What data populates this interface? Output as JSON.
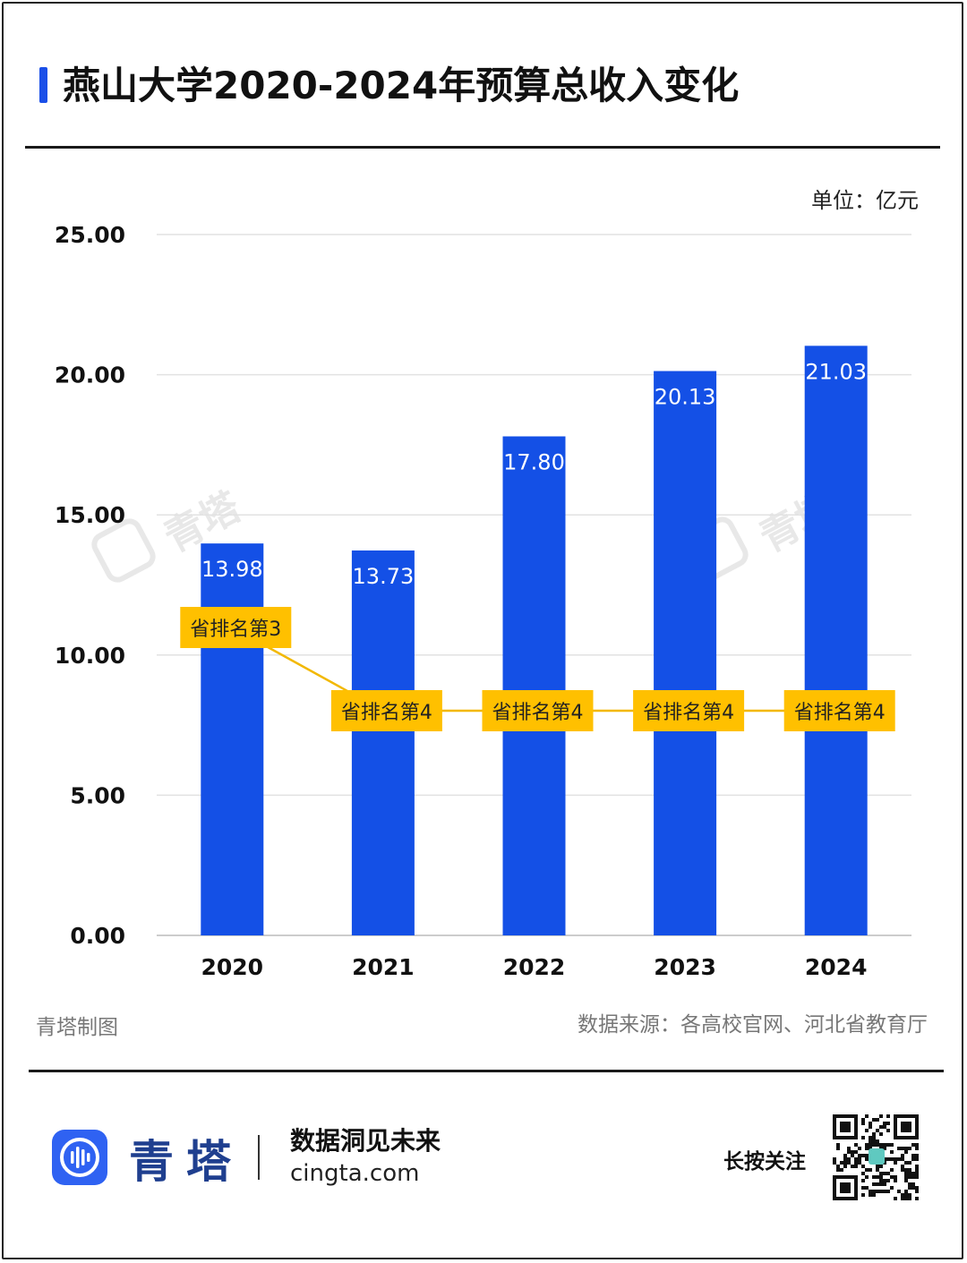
{
  "header": {
    "title": "燕山大学2020-2024年预算总收入变化"
  },
  "unit_label": "单位：亿元",
  "chart_data": {
    "type": "bar",
    "title": "燕山大学2020-2024年预算总收入变化",
    "categories": [
      "2020",
      "2021",
      "2022",
      "2023",
      "2024"
    ],
    "values": [
      13.98,
      13.73,
      17.8,
      20.13,
      21.03
    ],
    "value_labels": [
      "13.98",
      "13.73",
      "17.80",
      "20.13",
      "21.03"
    ],
    "ylim": [
      0,
      25
    ],
    "yticks": [
      "0.00",
      "5.00",
      "10.00",
      "15.00",
      "20.00",
      "25.00"
    ],
    "ytick_values": [
      0,
      5,
      10,
      15,
      20,
      25
    ],
    "grid": true,
    "bar_color": "#1450e6",
    "rank_series": {
      "labels": [
        "省排名第3",
        "省排名第4",
        "省排名第4",
        "省排名第4",
        "省排名第4"
      ],
      "ranks": [
        3,
        4,
        4,
        4,
        4
      ],
      "color": "#ffc000",
      "line_color": "#f2b800"
    }
  },
  "footer": {
    "made_by": "青塔制图",
    "source": "数据来源：各高校官网、河北省教育厅",
    "brand_name": "青塔",
    "slogan": "数据洞见未来",
    "website": "cingta.com",
    "follow": "长按关注"
  },
  "watermark": "青塔",
  "colors": {
    "accent": "#1a4fe8",
    "brand": "#1f3f8f"
  }
}
